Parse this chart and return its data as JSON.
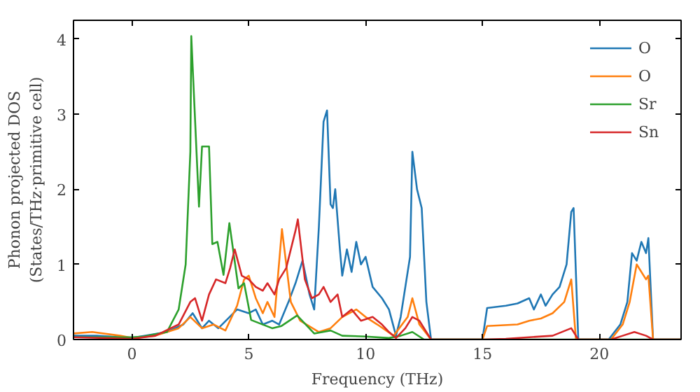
{
  "chart_data": {
    "type": "line",
    "xlabel": "Frequency (THz)",
    "ylabel": "Phonon projected DOS\n(States/THz·primitive cell)",
    "xlim": [
      -2.5,
      23.5
    ],
    "ylim": [
      0,
      4.25
    ],
    "xticks": [
      0,
      5,
      10,
      15,
      20
    ],
    "yticks": [
      0,
      1,
      2,
      3,
      4
    ],
    "grid": false,
    "legend": "top right",
    "marker": "none",
    "line_style": "solid",
    "series": [
      {
        "name": "O",
        "color": "#1f77b4",
        "x": [
          -2.5,
          -1.5,
          0,
          1.5,
          2.2,
          2.6,
          3,
          3.3,
          3.7,
          4.5,
          5,
          5.3,
          5.6,
          6,
          6.3,
          6.7,
          7,
          7.3,
          7.6,
          7.8,
          8,
          8.2,
          8.35,
          8.5,
          8.6,
          8.7,
          8.9,
          9,
          9.2,
          9.4,
          9.6,
          9.8,
          10,
          10.3,
          10.7,
          11,
          11.3,
          11.5,
          11.7,
          11.9,
          12,
          12.2,
          12.4,
          12.6,
          12.8,
          15,
          15.2,
          16,
          16.5,
          17,
          17.2,
          17.5,
          17.7,
          18,
          18.3,
          18.6,
          18.8,
          18.9,
          19.1,
          20.4,
          20.9,
          21.2,
          21.4,
          21.6,
          21.8,
          22,
          22.1,
          22.3,
          23.5
        ],
        "values": [
          0.05,
          0.05,
          0.02,
          0.1,
          0.2,
          0.35,
          0.15,
          0.25,
          0.15,
          0.4,
          0.35,
          0.4,
          0.2,
          0.25,
          0.2,
          0.5,
          0.75,
          1.05,
          0.6,
          0.4,
          1.5,
          2.9,
          3.05,
          1.8,
          1.75,
          2.0,
          1.2,
          0.85,
          1.2,
          0.9,
          1.3,
          1.0,
          1.1,
          0.7,
          0.55,
          0.4,
          0.05,
          0.3,
          0.7,
          1.1,
          2.5,
          2.0,
          1.75,
          0.5,
          0,
          0,
          0.42,
          0.45,
          0.48,
          0.55,
          0.4,
          0.6,
          0.45,
          0.6,
          0.7,
          1.0,
          1.7,
          1.75,
          0,
          0,
          0.2,
          0.5,
          1.15,
          1.05,
          1.3,
          1.15,
          1.35,
          0,
          0
        ]
      },
      {
        "name": "O",
        "color": "#ff7f0e",
        "x": [
          -2.5,
          -1.7,
          -0.5,
          0,
          1,
          2,
          2.5,
          3,
          3.5,
          4,
          4.5,
          4.8,
          5,
          5.3,
          5.6,
          5.8,
          6.1,
          6.42,
          6.8,
          7.2,
          8,
          8.5,
          9,
          9.6,
          10,
          10.5,
          11.2,
          11.8,
          12,
          12.3,
          12.8,
          15,
          15.2,
          16.5,
          17,
          17.5,
          18,
          18.5,
          18.8,
          19,
          20.5,
          21,
          21.3,
          21.6,
          22,
          22.1,
          22.3,
          23.5
        ],
        "values": [
          0.08,
          0.1,
          0.05,
          0.02,
          0.05,
          0.15,
          0.3,
          0.15,
          0.2,
          0.12,
          0.45,
          0.8,
          0.85,
          0.55,
          0.35,
          0.5,
          0.3,
          1.47,
          0.5,
          0.25,
          0.1,
          0.15,
          0.3,
          0.4,
          0.3,
          0.2,
          0.05,
          0.3,
          0.55,
          0.2,
          0,
          0,
          0.18,
          0.2,
          0.25,
          0.28,
          0.35,
          0.5,
          0.8,
          0,
          0,
          0.2,
          0.5,
          1.0,
          0.8,
          0.85,
          0,
          0
        ]
      },
      {
        "name": "Sr",
        "color": "#2ca02c",
        "x": [
          -2.5,
          0,
          0.5,
          1.5,
          2,
          2.3,
          2.5,
          2.54,
          2.87,
          3,
          3.3,
          3.44,
          3.66,
          3.92,
          4.17,
          4.56,
          4.8,
          5.1,
          6,
          6.4,
          7.07,
          7.8,
          8.5,
          9,
          10,
          11,
          11.5,
          12,
          12.5,
          13,
          23.5
        ],
        "values": [
          0.03,
          0.03,
          0.04,
          0.1,
          0.4,
          1.0,
          2.5,
          4.04,
          1.77,
          2.57,
          2.57,
          1.27,
          1.3,
          0.86,
          1.55,
          0.68,
          0.75,
          0.26,
          0.15,
          0.18,
          0.32,
          0.08,
          0.12,
          0.05,
          0.04,
          0.02,
          0.05,
          0.1,
          0,
          0,
          0
        ]
      },
      {
        "name": "Sn",
        "color": "#d62728",
        "x": [
          -2.5,
          0,
          1,
          2,
          2.5,
          2.7,
          3,
          3.3,
          3.6,
          4,
          4.2,
          4.4,
          4.7,
          5,
          5.3,
          5.6,
          5.8,
          6.1,
          6.3,
          6.6,
          7,
          7.1,
          7.4,
          7.7,
          8,
          8.2,
          8.5,
          8.8,
          9,
          9.4,
          9.8,
          10.3,
          10.7,
          11,
          11.3,
          11.7,
          12,
          12.3,
          12.8,
          15,
          16,
          17,
          18,
          18.8,
          19.1,
          20.5,
          21,
          21.5,
          22,
          22.3,
          23.5
        ],
        "values": [
          0.03,
          0.01,
          0.05,
          0.2,
          0.5,
          0.55,
          0.25,
          0.6,
          0.8,
          0.75,
          0.95,
          1.2,
          0.85,
          0.8,
          0.7,
          0.65,
          0.75,
          0.6,
          0.8,
          0.95,
          1.45,
          1.6,
          0.8,
          0.55,
          0.6,
          0.7,
          0.5,
          0.6,
          0.3,
          0.4,
          0.25,
          0.3,
          0.2,
          0.1,
          0.02,
          0.15,
          0.3,
          0.25,
          0,
          0,
          0.01,
          0.03,
          0.05,
          0.15,
          0,
          0,
          0.05,
          0.1,
          0.05,
          0,
          0
        ]
      }
    ]
  }
}
